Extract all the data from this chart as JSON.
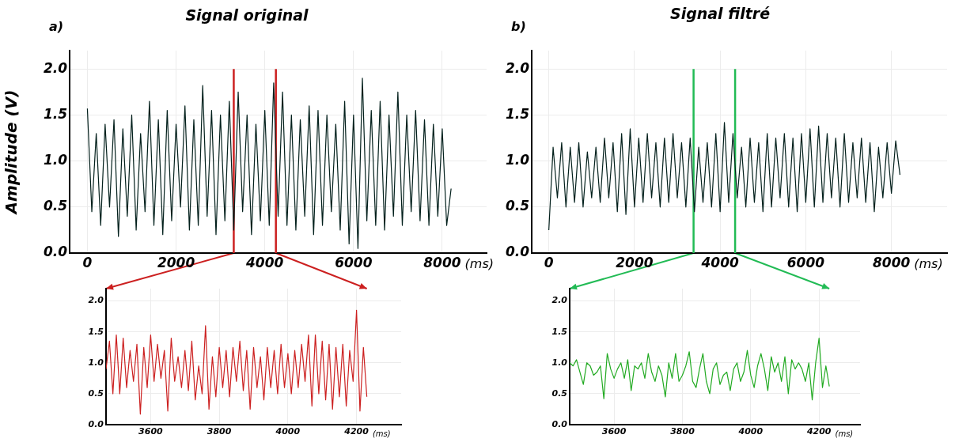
{
  "chart_data": [
    {
      "type": "line",
      "title": "Signal original",
      "ylabel": "Amplitude (V)",
      "xlabel": "(ms)",
      "annotations": [
        "a)"
      ],
      "x": [
        0,
        100,
        200,
        300,
        400,
        500,
        600,
        700,
        800,
        900,
        1000,
        1100,
        1200,
        1300,
        1400,
        1500,
        1600,
        1700,
        1800,
        1900,
        2000,
        2100,
        2200,
        2300,
        2400,
        2500,
        2600,
        2700,
        2800,
        2900,
        3000,
        3100,
        3200,
        3300,
        3400,
        3500,
        3600,
        3700,
        3800,
        3900,
        4000,
        4100,
        4200,
        4300,
        4400,
        4500,
        4600,
        4700,
        4800,
        4900,
        5000,
        5100,
        5200,
        5300,
        5400,
        5500,
        5600,
        5700,
        5800,
        5900,
        6000,
        6100,
        6200,
        6300,
        6400,
        6500,
        6600,
        6700,
        6800,
        6900,
        7000,
        7100,
        7200,
        7300,
        7400,
        7500,
        7600,
        7700,
        7800,
        7900,
        8000,
        8100,
        8200
      ],
      "series": [
        {
          "color": "#03201c",
          "values": [
            1.57,
            0.45,
            1.3,
            0.3,
            1.4,
            0.5,
            1.45,
            0.18,
            1.35,
            0.4,
            1.5,
            0.25,
            1.3,
            0.45,
            1.65,
            0.3,
            1.45,
            0.2,
            1.55,
            0.35,
            1.4,
            0.5,
            1.6,
            0.25,
            1.45,
            0.3,
            1.82,
            0.4,
            1.55,
            0.2,
            1.5,
            0.35,
            1.65,
            0.25,
            1.75,
            0.45,
            1.5,
            0.2,
            1.4,
            0.35,
            1.55,
            0.3,
            1.85,
            0.4,
            1.75,
            0.3,
            1.5,
            0.25,
            1.45,
            0.4,
            1.6,
            0.2,
            1.55,
            0.3,
            1.5,
            0.45,
            1.4,
            0.25,
            1.65,
            0.1,
            1.5,
            0.05,
            1.9,
            0.35,
            1.55,
            0.3,
            1.65,
            0.25,
            1.5,
            0.4,
            1.75,
            0.3,
            1.5,
            0.45,
            1.55,
            0.35,
            1.45,
            0.3,
            1.4,
            0.4,
            1.35,
            0.3,
            0.7
          ]
        }
      ],
      "xlim": [
        -400,
        9000
      ],
      "ylim": [
        0,
        2.2
      ],
      "xticks": [
        0,
        2000,
        4000,
        6000,
        8000
      ],
      "yticks": [
        {
          "value": 0,
          "label": "0.0"
        },
        {
          "value": 0.5,
          "label": "0.5"
        },
        {
          "value": 1,
          "label": "1.0"
        },
        {
          "value": 1.5,
          "label": "1.5"
        },
        {
          "value": 2,
          "label": "2.0"
        }
      ],
      "grid": true,
      "ref_lines": [
        {
          "axis": "x",
          "value": 3300,
          "color": "#cc2020"
        },
        {
          "axis": "x",
          "value": 4250,
          "color": "#cc2020"
        }
      ]
    },
    {
      "type": "line",
      "title": "Signal filtré",
      "xlabel": "(ms)",
      "annotations": [
        "b)"
      ],
      "x": [
        0,
        100,
        200,
        300,
        400,
        500,
        600,
        700,
        800,
        900,
        1000,
        1100,
        1200,
        1300,
        1400,
        1500,
        1600,
        1700,
        1800,
        1900,
        2000,
        2100,
        2200,
        2300,
        2400,
        2500,
        2600,
        2700,
        2800,
        2900,
        3000,
        3100,
        3200,
        3300,
        3400,
        3500,
        3600,
        3700,
        3800,
        3900,
        4000,
        4100,
        4200,
        4300,
        4400,
        4500,
        4600,
        4700,
        4800,
        4900,
        5000,
        5100,
        5200,
        5300,
        5400,
        5500,
        5600,
        5700,
        5800,
        5900,
        6000,
        6100,
        6200,
        6300,
        6400,
        6500,
        6600,
        6700,
        6800,
        6900,
        7000,
        7100,
        7200,
        7300,
        7400,
        7500,
        7600,
        7700,
        7800,
        7900,
        8000,
        8100,
        8200
      ],
      "series": [
        {
          "color": "#03201c",
          "values": [
            0.25,
            1.15,
            0.6,
            1.2,
            0.5,
            1.15,
            0.55,
            1.2,
            0.5,
            1.1,
            0.6,
            1.15,
            0.55,
            1.25,
            0.6,
            1.2,
            0.45,
            1.3,
            0.42,
            1.35,
            0.5,
            1.25,
            0.55,
            1.3,
            0.6,
            1.2,
            0.5,
            1.25,
            0.55,
            1.3,
            0.6,
            1.2,
            0.5,
            1.25,
            0.45,
            1.15,
            0.55,
            1.2,
            0.5,
            1.3,
            0.45,
            1.42,
            0.55,
            1.3,
            0.6,
            1.15,
            0.5,
            1.25,
            0.55,
            1.2,
            0.45,
            1.3,
            0.5,
            1.25,
            0.6,
            1.3,
            0.5,
            1.25,
            0.45,
            1.3,
            0.55,
            1.35,
            0.5,
            1.38,
            0.55,
            1.3,
            0.6,
            1.25,
            0.5,
            1.3,
            0.55,
            1.2,
            0.6,
            1.25,
            0.55,
            1.2,
            0.45,
            1.15,
            0.6,
            1.2,
            0.65,
            1.22,
            0.85
          ]
        }
      ],
      "xlim": [
        -400,
        9300
      ],
      "ylim": [
        0,
        2.2
      ],
      "xticks": [
        0,
        2000,
        4000,
        6000,
        8000
      ],
      "yticks": [
        {
          "value": 0,
          "label": "0.0"
        },
        {
          "value": 0.5,
          "label": "0.5"
        },
        {
          "value": 1,
          "label": "1.0"
        },
        {
          "value": 1.5,
          "label": "1.5"
        },
        {
          "value": 2,
          "label": "2.0"
        }
      ],
      "grid": true,
      "ref_lines": [
        {
          "axis": "x",
          "value": 3380,
          "color": "#22bb55"
        },
        {
          "axis": "x",
          "value": 4350,
          "color": "#22bb55"
        }
      ]
    },
    {
      "type": "line",
      "xlabel": "(ms)",
      "x": [
        3470,
        3480,
        3490,
        3500,
        3510,
        3520,
        3530,
        3540,
        3550,
        3560,
        3570,
        3580,
        3590,
        3600,
        3610,
        3620,
        3630,
        3640,
        3650,
        3660,
        3670,
        3680,
        3690,
        3700,
        3710,
        3720,
        3730,
        3740,
        3750,
        3760,
        3770,
        3780,
        3790,
        3800,
        3810,
        3820,
        3830,
        3840,
        3850,
        3860,
        3870,
        3880,
        3890,
        3900,
        3910,
        3920,
        3930,
        3940,
        3950,
        3960,
        3970,
        3980,
        3990,
        4000,
        4010,
        4020,
        4030,
        4040,
        4050,
        4060,
        4070,
        4080,
        4090,
        4100,
        4110,
        4120,
        4130,
        4140,
        4150,
        4160,
        4170,
        4180,
        4190,
        4200,
        4210,
        4220,
        4230
      ],
      "series": [
        {
          "color": "#cc2020",
          "values": [
            0.9,
            1.35,
            0.5,
            1.45,
            0.5,
            1.4,
            0.6,
            1.2,
            0.7,
            1.3,
            0.17,
            1.25,
            0.6,
            1.45,
            0.7,
            1.3,
            0.75,
            1.2,
            0.22,
            1.4,
            0.7,
            1.1,
            0.6,
            1.2,
            0.55,
            1.35,
            0.4,
            0.95,
            0.5,
            1.6,
            0.25,
            1.1,
            0.45,
            1.25,
            0.6,
            1.2,
            0.45,
            1.25,
            0.7,
            1.35,
            0.55,
            1.2,
            0.25,
            1.25,
            0.6,
            1.1,
            0.4,
            1.25,
            0.6,
            1.2,
            0.5,
            1.3,
            0.6,
            1.15,
            0.5,
            1.2,
            0.6,
            1.3,
            0.7,
            1.45,
            0.3,
            1.45,
            0.5,
            1.35,
            0.4,
            1.3,
            0.25,
            1.25,
            0.45,
            1.3,
            0.3,
            1.2,
            0.7,
            1.85,
            0.22,
            1.25,
            0.45
          ]
        }
      ],
      "xlim": [
        3470,
        4330
      ],
      "ylim": [
        0,
        2.2
      ],
      "xticks": [
        3600,
        3800,
        4000,
        4200
      ],
      "yticks": [
        {
          "value": 0,
          "label": "0.0"
        },
        {
          "value": 0.5,
          "label": "0.5"
        },
        {
          "value": 1,
          "label": "1.0"
        },
        {
          "value": 1.5,
          "label": "1.5"
        },
        {
          "value": 2,
          "label": "2.0"
        }
      ],
      "grid": true
    },
    {
      "type": "line",
      "xlabel": "(ms)",
      "x": [
        3470,
        3480,
        3490,
        3500,
        3510,
        3520,
        3530,
        3540,
        3550,
        3560,
        3570,
        3580,
        3590,
        3600,
        3610,
        3620,
        3630,
        3640,
        3650,
        3660,
        3670,
        3680,
        3690,
        3700,
        3710,
        3720,
        3730,
        3740,
        3750,
        3760,
        3770,
        3780,
        3790,
        3800,
        3810,
        3820,
        3830,
        3840,
        3850,
        3860,
        3870,
        3880,
        3890,
        3900,
        3910,
        3920,
        3930,
        3940,
        3950,
        3960,
        3970,
        3980,
        3990,
        4000,
        4010,
        4020,
        4030,
        4040,
        4050,
        4060,
        4070,
        4080,
        4090,
        4100,
        4110,
        4120,
        4130,
        4140,
        4150,
        4160,
        4170,
        4180,
        4190,
        4200,
        4210,
        4220,
        4230
      ],
      "series": [
        {
          "color": "#22aa22",
          "values": [
            1.0,
            0.95,
            1.05,
            0.85,
            0.65,
            1.0,
            0.95,
            0.8,
            0.85,
            0.95,
            0.42,
            1.15,
            0.9,
            0.75,
            0.9,
            1.0,
            0.75,
            1.05,
            0.55,
            0.95,
            0.9,
            1.0,
            0.75,
            1.15,
            0.85,
            0.7,
            0.95,
            0.8,
            0.45,
            1.0,
            0.75,
            1.15,
            0.7,
            0.8,
            0.95,
            1.18,
            0.7,
            0.6,
            0.9,
            1.15,
            0.7,
            0.5,
            0.9,
            1.0,
            0.65,
            0.8,
            0.85,
            0.55,
            0.9,
            1.0,
            0.7,
            0.85,
            1.2,
            0.8,
            0.6,
            0.95,
            1.15,
            0.9,
            0.55,
            1.1,
            0.85,
            1.0,
            0.7,
            1.1,
            0.5,
            1.05,
            0.9,
            1.0,
            0.9,
            0.7,
            1.0,
            0.4,
            1.0,
            1.4,
            0.6,
            0.95,
            0.62
          ]
        }
      ],
      "xlim": [
        3470,
        4320
      ],
      "ylim": [
        0,
        2.2
      ],
      "xticks": [
        3600,
        3800,
        4000,
        4200
      ],
      "yticks": [
        {
          "value": 0,
          "label": "0.0"
        },
        {
          "value": 0.5,
          "label": "0.5"
        },
        {
          "value": 1,
          "label": "1.0"
        },
        {
          "value": 1.5,
          "label": "1.5"
        },
        {
          "value": 2,
          "label": "2.0"
        }
      ],
      "grid": true
    }
  ]
}
